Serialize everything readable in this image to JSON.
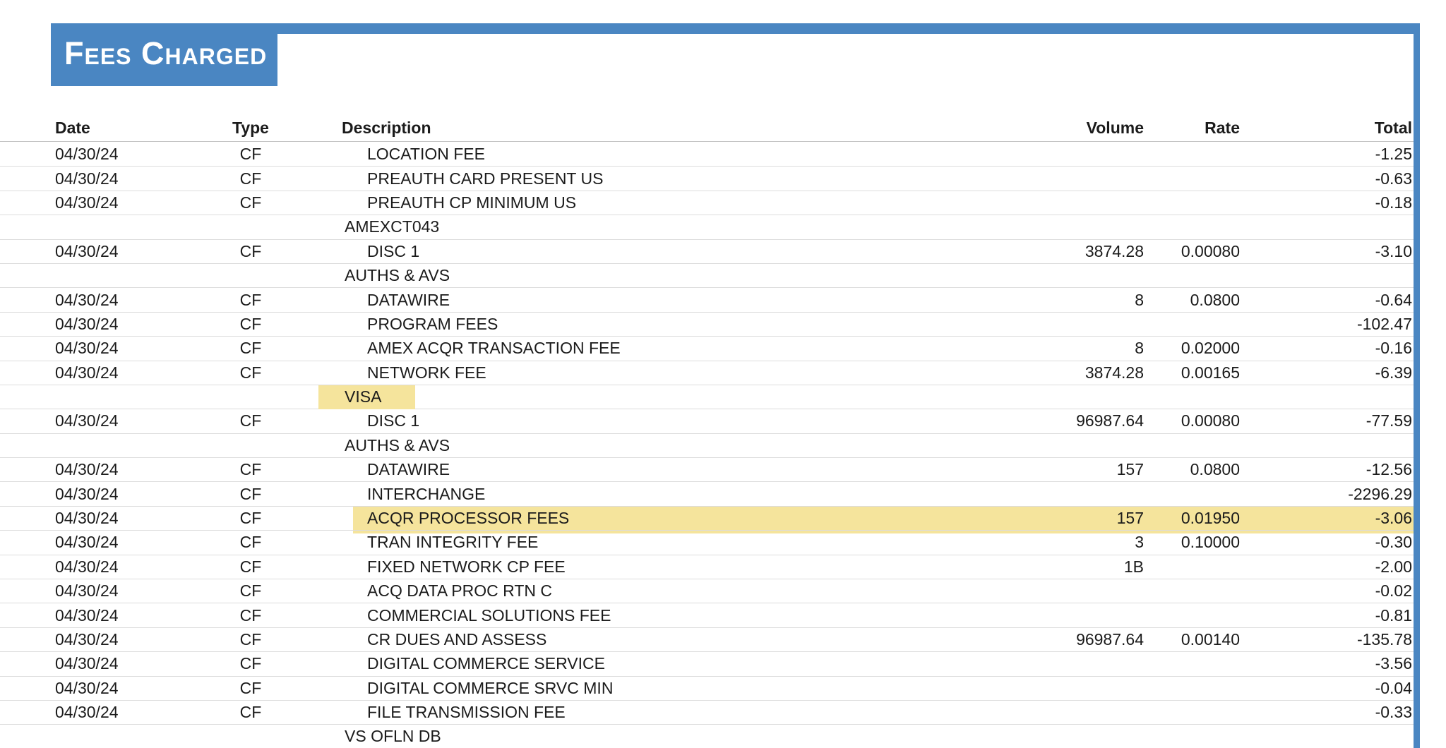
{
  "title": "Fees Charged",
  "colors": {
    "accent_blue": "#4a86c2",
    "highlight_yellow": "#f5e49c",
    "separator_gray": "#dcdcdc",
    "text": "#1b1b1b"
  },
  "table": {
    "columns": [
      "Date",
      "Type",
      "Description",
      "Volume",
      "Rate",
      "Total"
    ],
    "rows": [
      {
        "kind": "item",
        "highlight": "none",
        "date": "04/30/24",
        "type": "CF",
        "description": "LOCATION FEE",
        "volume": "",
        "rate": "",
        "total": "-1.25"
      },
      {
        "kind": "item",
        "highlight": "none",
        "date": "04/30/24",
        "type": "CF",
        "description": "PREAUTH CARD PRESENT US",
        "volume": "",
        "rate": "",
        "total": "-0.63"
      },
      {
        "kind": "item",
        "highlight": "none",
        "date": "04/30/24",
        "type": "CF",
        "description": "PREAUTH CP MINIMUM US",
        "volume": "",
        "rate": "",
        "total": "-0.18"
      },
      {
        "kind": "group",
        "highlight": "none",
        "date": "",
        "type": "",
        "description": "AMEXCT043",
        "volume": "",
        "rate": "",
        "total": ""
      },
      {
        "kind": "item",
        "highlight": "none",
        "date": "04/30/24",
        "type": "CF",
        "description": "DISC 1",
        "volume": "3874.28",
        "rate": "0.00080",
        "total": "-3.10"
      },
      {
        "kind": "group",
        "highlight": "none",
        "date": "",
        "type": "",
        "description": "AUTHS & AVS",
        "volume": "",
        "rate": "",
        "total": ""
      },
      {
        "kind": "item",
        "highlight": "none",
        "date": "04/30/24",
        "type": "CF",
        "description": "DATAWIRE",
        "volume": "8",
        "rate": "0.0800",
        "total": "-0.64"
      },
      {
        "kind": "item",
        "highlight": "none",
        "date": "04/30/24",
        "type": "CF",
        "description": "PROGRAM FEES",
        "volume": "",
        "rate": "",
        "total": "-102.47"
      },
      {
        "kind": "item",
        "highlight": "none",
        "date": "04/30/24",
        "type": "CF",
        "description": "AMEX ACQR TRANSACTION FEE",
        "volume": "8",
        "rate": "0.02000",
        "total": "-0.16"
      },
      {
        "kind": "item",
        "highlight": "none",
        "date": "04/30/24",
        "type": "CF",
        "description": "NETWORK FEE",
        "volume": "3874.28",
        "rate": "0.00165",
        "total": "-6.39"
      },
      {
        "kind": "group",
        "highlight": "text",
        "date": "",
        "type": "",
        "description": "VISA",
        "volume": "",
        "rate": "",
        "total": ""
      },
      {
        "kind": "item",
        "highlight": "none",
        "date": "04/30/24",
        "type": "CF",
        "description": "DISC 1",
        "volume": "96987.64",
        "rate": "0.00080",
        "total": "-77.59"
      },
      {
        "kind": "group",
        "highlight": "none",
        "date": "",
        "type": "",
        "description": "AUTHS & AVS",
        "volume": "",
        "rate": "",
        "total": ""
      },
      {
        "kind": "item",
        "highlight": "none",
        "date": "04/30/24",
        "type": "CF",
        "description": "DATAWIRE",
        "volume": "157",
        "rate": "0.0800",
        "total": "-12.56"
      },
      {
        "kind": "item",
        "highlight": "none",
        "date": "04/30/24",
        "type": "CF",
        "description": "INTERCHANGE",
        "volume": "",
        "rate": "",
        "total": "-2296.29"
      },
      {
        "kind": "item",
        "highlight": "row",
        "date": "04/30/24",
        "type": "CF",
        "description": "ACQR PROCESSOR FEES",
        "volume": "157",
        "rate": "0.01950",
        "total": "-3.06"
      },
      {
        "kind": "item",
        "highlight": "none",
        "date": "04/30/24",
        "type": "CF",
        "description": "TRAN INTEGRITY FEE",
        "volume": "3",
        "rate": "0.10000",
        "total": "-0.30"
      },
      {
        "kind": "item",
        "highlight": "none",
        "date": "04/30/24",
        "type": "CF",
        "description": "FIXED NETWORK CP FEE",
        "volume": "1B",
        "rate": "",
        "total": "-2.00"
      },
      {
        "kind": "item",
        "highlight": "none",
        "date": "04/30/24",
        "type": "CF",
        "description": "ACQ DATA PROC RTN C",
        "volume": "",
        "rate": "",
        "total": "-0.02"
      },
      {
        "kind": "item",
        "highlight": "none",
        "date": "04/30/24",
        "type": "CF",
        "description": "COMMERCIAL SOLUTIONS FEE",
        "volume": "",
        "rate": "",
        "total": "-0.81"
      },
      {
        "kind": "item",
        "highlight": "none",
        "date": "04/30/24",
        "type": "CF",
        "description": "CR DUES AND ASSESS",
        "volume": "96987.64",
        "rate": "0.00140",
        "total": "-135.78"
      },
      {
        "kind": "item",
        "highlight": "none",
        "date": "04/30/24",
        "type": "CF",
        "description": "DIGITAL COMMERCE SERVICE",
        "volume": "",
        "rate": "",
        "total": "-3.56"
      },
      {
        "kind": "item",
        "highlight": "none",
        "date": "04/30/24",
        "type": "CF",
        "description": "DIGITAL COMMERCE SRVC MIN",
        "volume": "",
        "rate": "",
        "total": "-0.04"
      },
      {
        "kind": "item",
        "highlight": "none",
        "date": "04/30/24",
        "type": "CF",
        "description": "FILE TRANSMISSION FEE",
        "volume": "",
        "rate": "",
        "total": "-0.33"
      },
      {
        "kind": "group",
        "highlight": "none",
        "date": "",
        "type": "",
        "description": "VS OFLN DB",
        "volume": "",
        "rate": "",
        "total": ""
      }
    ]
  }
}
